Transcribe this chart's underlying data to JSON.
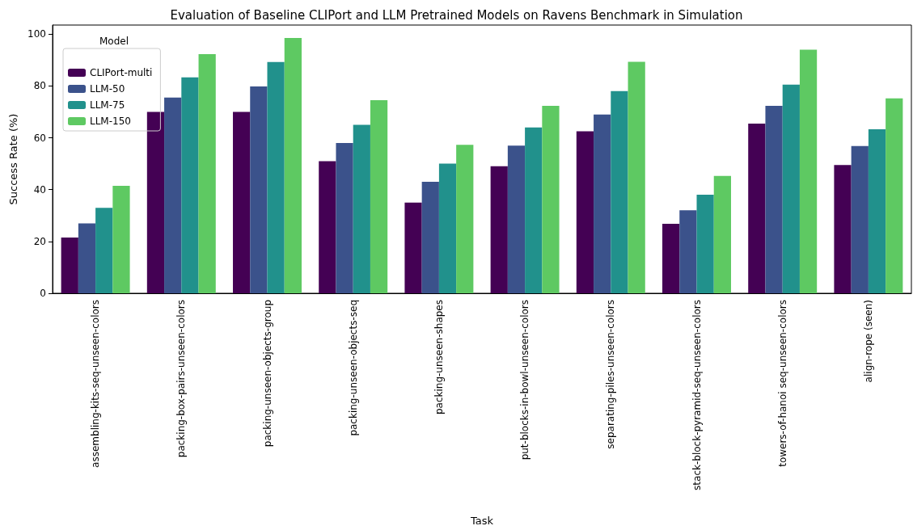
{
  "chart_data": {
    "type": "bar",
    "title": "Evaluation of Baseline CLIPort and LLM Pretrained Models on Ravens Benchmark in Simulation",
    "xlabel": "Task",
    "ylabel": "Success Rate (%)",
    "legend_title": "Model",
    "categories": [
      "assembling-kits-seq-unseen-colors",
      "packing-box-pairs-unseen-colors",
      "packing-unseen-objects-group",
      "packing-unseen-objects-seq",
      "packing-unseen-shapes",
      "put-blocks-in-bowl-unseen-colors",
      "separating-piles-unseen-colors",
      "stack-block-pyramid-seq-unseen-colors",
      "towers-of-hanoi seq-unseen-colors",
      "align-rope (seen)"
    ],
    "series": [
      {
        "name": "CLIPort-multi",
        "color": "#440154",
        "values": [
          21.5,
          70,
          70,
          51,
          35,
          49,
          62.5,
          26.8,
          65.5,
          49.5
        ]
      },
      {
        "name": "LLM-50",
        "color": "#3b528b",
        "values": [
          27,
          75.5,
          79.8,
          58,
          43,
          57,
          69,
          32,
          72.3,
          56.8
        ]
      },
      {
        "name": "LLM-75",
        "color": "#21918c",
        "values": [
          33,
          83.3,
          89.2,
          65,
          50,
          64,
          78,
          38,
          80.5,
          63.3
        ]
      },
      {
        "name": "LLM-150",
        "color": "#5ec962",
        "values": [
          41.5,
          92.3,
          98.5,
          74.5,
          57.3,
          72.3,
          89.3,
          45.3,
          94,
          75.2
        ]
      }
    ],
    "ylim": [
      0,
      103.5
    ],
    "yticks": [
      0,
      20,
      40,
      60,
      80,
      100
    ],
    "grid": false,
    "legend": "top left"
  }
}
